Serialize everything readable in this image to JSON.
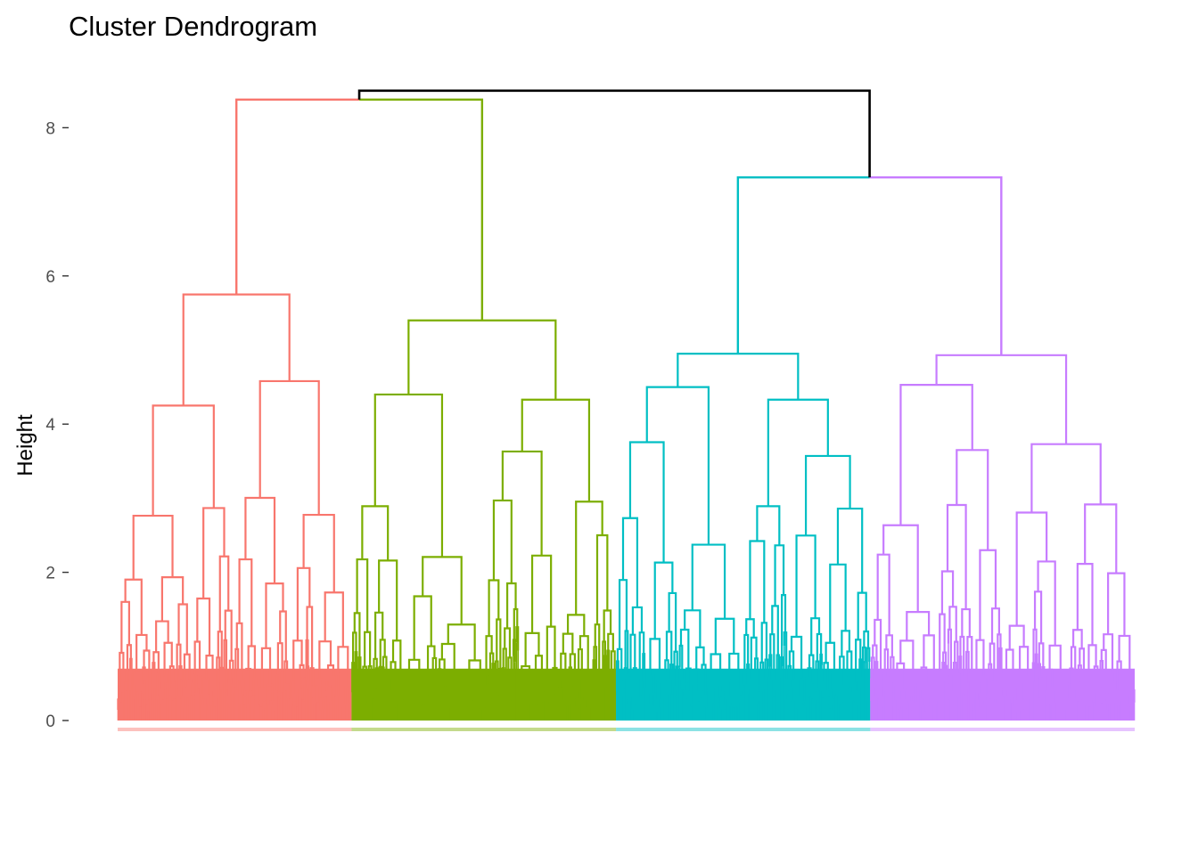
{
  "chart_data": {
    "type": "dendrogram",
    "title": "Cluster Dendrogram",
    "xlabel": "",
    "ylabel": "Height",
    "ylim": [
      0,
      8.6
    ],
    "yticks": [
      0,
      2,
      4,
      6,
      8
    ],
    "grid": false,
    "legend": "none",
    "root_height": 8.5,
    "root_color": "#000000",
    "clusters": [
      {
        "color": "#F8766D",
        "span": [
          0.0,
          0.23
        ],
        "merge_height": 8.38,
        "children": [
          {
            "at": 0.09,
            "height": 5.75,
            "parts": [
              {
                "at": 0.05,
                "height": 4.25
              },
              {
                "at": 0.21,
                "height": 4.58
              }
            ]
          }
        ]
      },
      {
        "color": "#7CAE00",
        "span": [
          0.23,
          0.49
        ],
        "merge_height": 8.38,
        "children": [
          {
            "at": 0.37,
            "height": 5.4,
            "parts": [
              {
                "at": 0.31,
                "height": 4.4
              },
              {
                "at": 0.43,
                "height": 4.33
              }
            ]
          }
        ]
      },
      {
        "color": "#00BFC4",
        "span": [
          0.49,
          0.74
        ],
        "merge_height": 7.33,
        "children": [
          {
            "at": 0.61,
            "height": 4.95,
            "parts": [
              {
                "at": 0.57,
                "height": 4.5
              },
              {
                "at": 0.69,
                "height": 4.33
              }
            ]
          }
        ]
      },
      {
        "color": "#C77CFF",
        "span": [
          0.74,
          1.0
        ],
        "merge_height": 7.33,
        "children": [
          {
            "at": 0.88,
            "height": 4.93,
            "parts": [
              {
                "at": 0.82,
                "height": 4.53
              },
              {
                "at": 0.94,
                "height": 3.73
              }
            ]
          }
        ]
      }
    ],
    "top_merges": [
      {
        "left_cluster": 0,
        "right_cluster": 1,
        "height": 8.38
      },
      {
        "left_cluster": 2,
        "right_cluster": 3,
        "height": 7.33
      },
      {
        "left": "red-green",
        "right": "cyan-purple",
        "height": 8.5
      }
    ]
  }
}
